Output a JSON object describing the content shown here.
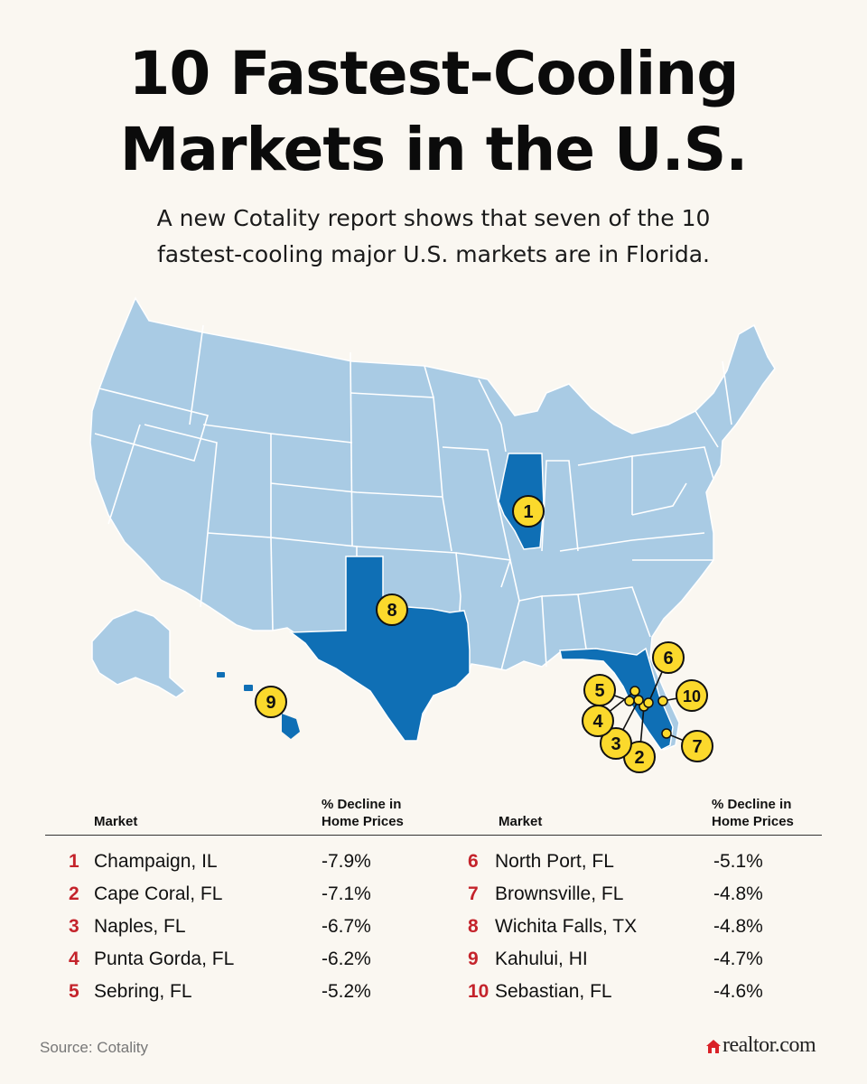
{
  "header": {
    "title_line1": "10 Fastest-Cooling",
    "title_line2": "Markets in the U.S.",
    "subtitle_line1": "A new Cotality report shows that seven of the 10",
    "subtitle_line2": "fastest-cooling major U.S. markets are in Florida."
  },
  "colors": {
    "map_base": "#a9cbe4",
    "map_highlight": "#0f6fb5",
    "state_border": "#ffffff",
    "marker_fill": "#fbd92c",
    "marker_stroke": "#111111",
    "rank_red": "#c4232b"
  },
  "chart_data": {
    "type": "table",
    "title": "10 Fastest-Cooling Markets in the U.S.",
    "columns": [
      "Market",
      "% Decline in Home Prices"
    ],
    "rows": [
      {
        "rank": "1",
        "market": "Champaign, IL",
        "decline": "-7.9%",
        "value": -7.9
      },
      {
        "rank": "2",
        "market": "Cape Coral, FL",
        "decline": "-7.1%",
        "value": -7.1
      },
      {
        "rank": "3",
        "market": "Naples, FL",
        "decline": "-6.7%",
        "value": -6.7
      },
      {
        "rank": "4",
        "market": "Punta Gorda, FL",
        "decline": "-6.2%",
        "value": -6.2
      },
      {
        "rank": "5",
        "market": "Sebring, FL",
        "decline": "-5.2%",
        "value": -5.2
      },
      {
        "rank": "6",
        "market": "North Port, FL",
        "decline": "-5.1%",
        "value": -5.1
      },
      {
        "rank": "7",
        "market": "Brownsville, FL",
        "decline": "-4.8%",
        "value": -4.8
      },
      {
        "rank": "8",
        "market": "Wichita Falls, TX",
        "decline": "-4.8%",
        "value": -4.8
      },
      {
        "rank": "9",
        "market": "Kahului, HI",
        "decline": "-4.7%",
        "value": -4.7
      },
      {
        "rank": "10",
        "market": "Sebastian, FL",
        "decline": "-4.6%",
        "value": -4.6
      }
    ]
  },
  "table": {
    "col_market": "Market",
    "col_decline_line1": "% Decline in",
    "col_decline_line2": "Home Prices"
  },
  "map": {
    "highlighted_states": [
      "Illinois",
      "Texas",
      "Florida",
      "Hawaii"
    ],
    "markers": [
      "1",
      "2",
      "3",
      "4",
      "5",
      "6",
      "7",
      "8",
      "9",
      "10"
    ]
  },
  "footer": {
    "source": "Source: Cotality",
    "brand": "realtor.com",
    "brand_icon": "house-icon"
  }
}
